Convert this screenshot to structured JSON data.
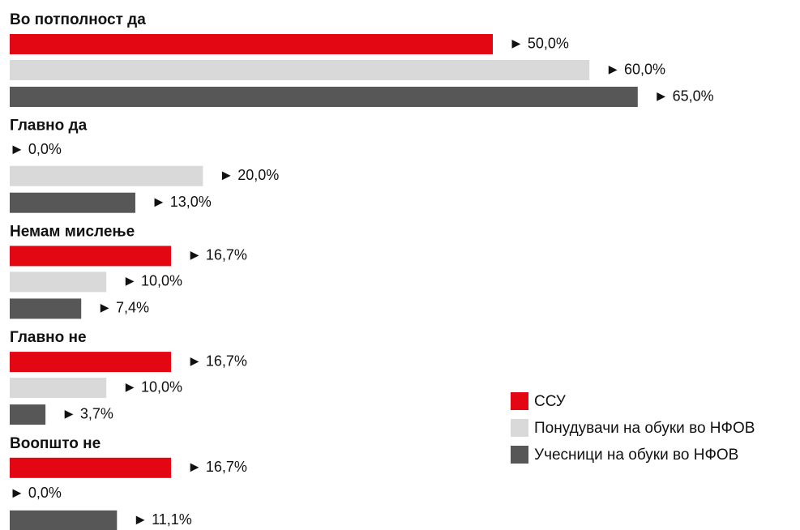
{
  "chart_data": {
    "type": "bar",
    "orientation": "horizontal",
    "categories": [
      "Во потполност да",
      "Главно да",
      "Немам мислење",
      "Главно не",
      "Воопшто не"
    ],
    "series": [
      {
        "name": "ССУ",
        "color": "#e30613",
        "values": [
          50,
          0,
          16.7,
          16.7,
          16.7
        ],
        "value_labels": [
          "► 50,0%",
          "► 0,0%",
          "► 16,7%",
          "► 16,7%",
          "► 16,7%"
        ]
      },
      {
        "name": "Понудувачи на обуки во НФОВ",
        "color": "#d9d9d9",
        "values": [
          60,
          20,
          10,
          10,
          0
        ],
        "value_labels": [
          "► 60,0%",
          "► 20,0%",
          "► 10,0%",
          "► 10,0%",
          "► 0,0%"
        ]
      },
      {
        "name": "Учесници на обуки во НФОВ",
        "color": "#575757",
        "values": [
          65,
          13,
          7.4,
          3.7,
          11.1
        ],
        "value_labels": [
          "► 65,0%",
          "► 13,0%",
          "► 7,4%",
          "► 3,7%",
          "► 11,1%"
        ]
      }
    ]
  }
}
